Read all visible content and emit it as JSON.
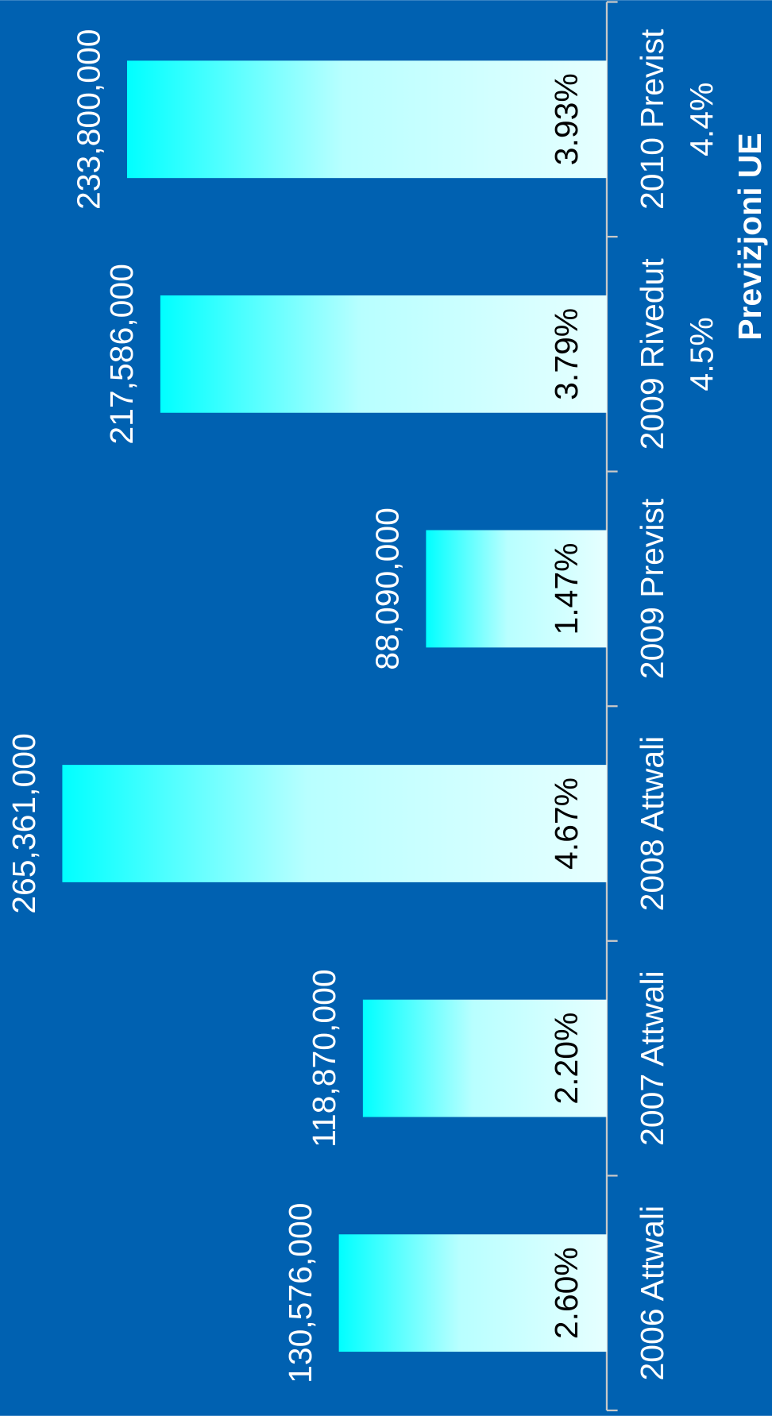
{
  "chart_data": {
    "type": "bar",
    "categories": [
      "2006 Attwali",
      "2007 Attwali",
      "2008 Attwali",
      "2009 Previst",
      "2009 Rivedut",
      "2010 Previst"
    ],
    "values": [
      130576000,
      118870000,
      265361000,
      88090000,
      217586000,
      233800000
    ],
    "value_labels": [
      "130,576,000",
      "118,870,000",
      "265,361,000",
      "88,090,000",
      "217,586,000",
      "233,800,000"
    ],
    "percentages": [
      2.6,
      2.2,
      4.67,
      1.47,
      3.79,
      3.93
    ],
    "percentage_labels": [
      "2.60%",
      "2.20%",
      "4.67%",
      "1.47%",
      "3.79%",
      "3.93%"
    ],
    "annotation": {
      "title": "Previżjoni UE",
      "values": [
        4.5,
        4.4
      ],
      "value_labels": [
        "4.5%",
        "4.4%"
      ]
    },
    "color": "#00ffff",
    "background": "#0061b1"
  }
}
